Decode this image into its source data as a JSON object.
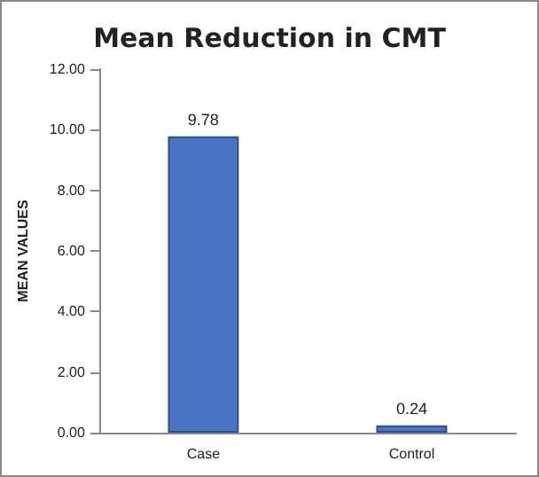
{
  "chart_data": {
    "type": "bar",
    "title": "Mean Reduction in CMT",
    "ylabel": "MEAN VALUES",
    "categories": [
      "Case",
      "Control"
    ],
    "values": [
      9.78,
      0.24
    ],
    "color": "#4a74c4",
    "ylim": [
      0,
      12
    ],
    "yticks": [
      {
        "value": 0,
        "label": "0.00"
      },
      {
        "value": 2,
        "label": "2.00"
      },
      {
        "value": 4,
        "label": "4.00"
      },
      {
        "value": 6,
        "label": "6.00"
      },
      {
        "value": 8,
        "label": "8.00"
      },
      {
        "value": 10,
        "label": "10.00"
      },
      {
        "value": 12,
        "label": "12.00"
      }
    ],
    "data_labels": true,
    "grid": false
  }
}
